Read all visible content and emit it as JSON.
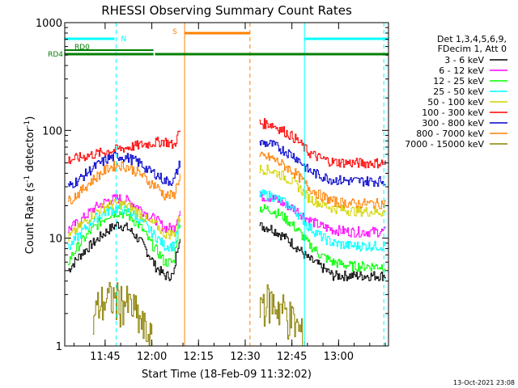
{
  "chart_data": {
    "type": "line",
    "title": "RHESSI Observing Summary Count Rates",
    "xlabel": "Start Time (18-Feb-09 11:32:02)",
    "ylabel": "Count Rate (s",
    "ylabel_sup1": "-1",
    "ylabel_mid": " detector",
    "ylabel_sup2": "-1",
    "ylabel_end": ")",
    "y_scale": "log",
    "ylim": [
      1,
      1000
    ],
    "xlim_minutes": [
      0,
      104
    ],
    "x_ticks": [
      {
        "label": "11:45",
        "min": 12.97
      },
      {
        "label": "12:00",
        "min": 27.97
      },
      {
        "label": "12:15",
        "min": 42.97
      },
      {
        "label": "12:30",
        "min": 57.97
      },
      {
        "label": "12:45",
        "min": 72.97
      },
      {
        "label": "13:00",
        "min": 87.97
      }
    ],
    "y_ticks": [
      {
        "label": "1",
        "v": 1
      },
      {
        "label": "10",
        "v": 10
      },
      {
        "label": "100",
        "v": 100
      },
      {
        "label": "1000",
        "v": 1000
      }
    ],
    "timestamp": "13-Oct-2021 23:08",
    "legend": {
      "header1": "Det 1,3,4,5,6,9,",
      "header2": "FDecim 1, Att 0",
      "items": [
        {
          "label": "3 - 6 keV",
          "color": "#000000"
        },
        {
          "label": "6 - 12 keV",
          "color": "#ff00ff"
        },
        {
          "label": "12 - 25 keV",
          "color": "#00ff00"
        },
        {
          "label": "25 - 50 keV",
          "color": "#00ffff"
        },
        {
          "label": "50 - 100 keV",
          "color": "#d4d400"
        },
        {
          "label": "100 - 300 keV",
          "color": "#ff0000"
        },
        {
          "label": "300 - 800 keV",
          "color": "#0000cc"
        },
        {
          "label": "800 - 7000 keV",
          "color": "#ff8000"
        },
        {
          "label": "7000 - 15000 keV",
          "color": "#8b8000"
        }
      ]
    },
    "flags": [
      {
        "label": "N",
        "color": "#00ffff",
        "segments": [
          [
            0,
            16
          ],
          [
            77,
            104
          ]
        ]
      },
      {
        "label": "RD0",
        "color": "#008000",
        "segments": [
          [
            0,
            28.5
          ]
        ]
      },
      {
        "label": "RD4",
        "color": "#008000",
        "segments": [
          [
            0,
            28.5
          ],
          [
            29,
            104
          ]
        ]
      },
      {
        "label": "S",
        "color": "#ff8000",
        "segments": [
          [
            38.5,
            59.5
          ]
        ]
      }
    ],
    "vlines": [
      {
        "min": 0,
        "color": "#00ffff",
        "dash": false
      },
      {
        "min": 16.5,
        "color": "#00ffff",
        "dash": true
      },
      {
        "min": 38.5,
        "color": "#ff8000",
        "dash": false
      },
      {
        "min": 59.5,
        "color": "#ff8000",
        "dash": true
      },
      {
        "min": 77.0,
        "color": "#00ffff",
        "dash": false
      },
      {
        "min": 102.5,
        "color": "#00ffff",
        "dash": true
      }
    ],
    "series": [
      {
        "name": "3 - 6 keV",
        "color": "#000000",
        "seg1": [
          [
            1,
            5
          ],
          [
            5,
            7
          ],
          [
            10,
            9.5
          ],
          [
            14,
            12
          ],
          [
            17,
            13.5
          ],
          [
            20,
            12.5
          ],
          [
            24,
            9.5
          ],
          [
            27,
            7
          ],
          [
            29,
            5.5
          ],
          [
            32,
            4.5
          ],
          [
            35,
            4.5
          ],
          [
            37,
            11
          ]
        ],
        "seg2": [
          [
            62.5,
            13
          ],
          [
            66,
            12.5
          ],
          [
            70,
            10.5
          ],
          [
            74,
            8.5
          ],
          [
            78,
            6.5
          ],
          [
            82,
            5.5
          ],
          [
            86,
            4.5
          ],
          [
            92,
            4.5
          ],
          [
            103,
            4.5
          ]
        ]
      },
      {
        "name": "6 - 12 keV",
        "color": "#ff00ff",
        "seg1": [
          [
            1,
            12
          ],
          [
            5,
            14.5
          ],
          [
            10,
            19.5
          ],
          [
            14,
            22.5
          ],
          [
            17,
            23.5
          ],
          [
            20,
            22.5
          ],
          [
            24,
            19
          ],
          [
            27,
            16
          ],
          [
            29,
            15
          ],
          [
            32,
            12.5
          ],
          [
            35,
            12.5
          ],
          [
            37,
            18
          ]
        ],
        "seg2": [
          [
            62.5,
            24.5
          ],
          [
            66,
            24
          ],
          [
            70,
            21
          ],
          [
            74,
            18.5
          ],
          [
            78,
            15
          ],
          [
            82,
            13
          ],
          [
            86,
            12
          ],
          [
            92,
            11.5
          ],
          [
            103,
            11.5
          ]
        ]
      },
      {
        "name": "12 - 25 keV",
        "color": "#00ff00",
        "seg1": [
          [
            1,
            6
          ],
          [
            5,
            9
          ],
          [
            10,
            13
          ],
          [
            14,
            16.5
          ],
          [
            17,
            17.5
          ],
          [
            20,
            16.5
          ],
          [
            24,
            13
          ],
          [
            27,
            9.5
          ],
          [
            29,
            8
          ],
          [
            32,
            6
          ],
          [
            35,
            6
          ],
          [
            37,
            14
          ]
        ],
        "seg2": [
          [
            62.5,
            19
          ],
          [
            66,
            18.5
          ],
          [
            70,
            16
          ],
          [
            74,
            12.5
          ],
          [
            78,
            9
          ],
          [
            82,
            7
          ],
          [
            86,
            6
          ],
          [
            92,
            5.5
          ],
          [
            103,
            5.5
          ]
        ]
      },
      {
        "name": "25 - 50 keV",
        "color": "#00ffff",
        "seg1": [
          [
            1,
            8
          ],
          [
            5,
            11
          ],
          [
            10,
            15.5
          ],
          [
            14,
            18
          ],
          [
            17,
            19
          ],
          [
            20,
            18
          ],
          [
            24,
            15
          ],
          [
            27,
            12
          ],
          [
            29,
            10.5
          ],
          [
            32,
            8.5
          ],
          [
            35,
            8.5
          ],
          [
            37,
            14
          ]
        ],
        "seg2": [
          [
            62.5,
            25.5
          ],
          [
            66,
            25
          ],
          [
            70,
            22
          ],
          [
            74,
            18
          ],
          [
            78,
            13
          ],
          [
            82,
            10.5
          ],
          [
            86,
            9
          ],
          [
            92,
            8.5
          ],
          [
            103,
            8.5
          ]
        ]
      },
      {
        "name": "50 - 100 keV",
        "color": "#d4d400",
        "seg1": [
          [
            1,
            10
          ],
          [
            5,
            13
          ],
          [
            10,
            17.5
          ],
          [
            14,
            20.5
          ],
          [
            17,
            21
          ],
          [
            20,
            20
          ],
          [
            24,
            17
          ],
          [
            27,
            14
          ],
          [
            29,
            13.5
          ],
          [
            32,
            11
          ],
          [
            35,
            11
          ],
          [
            37,
            16
          ]
        ],
        "seg2": [
          [
            62.5,
            44
          ],
          [
            66,
            43
          ],
          [
            70,
            38
          ],
          [
            74,
            32
          ],
          [
            78,
            24
          ],
          [
            82,
            21
          ],
          [
            86,
            19
          ],
          [
            92,
            18
          ],
          [
            103,
            17.5
          ]
        ]
      },
      {
        "name": "100 - 300 keV",
        "color": "#ff0000",
        "seg1": [
          [
            1,
            53
          ],
          [
            32,
            80
          ],
          [
            35,
            72
          ],
          [
            37,
            100
          ]
        ],
        "seg2": [
          [
            62.5,
            117
          ],
          [
            66,
            115
          ],
          [
            70,
            100
          ],
          [
            74,
            84
          ],
          [
            78,
            63
          ],
          [
            82,
            55
          ],
          [
            86,
            51
          ],
          [
            92,
            50
          ],
          [
            103,
            50
          ]
        ]
      },
      {
        "name": "300 - 800 keV",
        "color": "#0000cc",
        "seg1": [
          [
            1,
            30
          ],
          [
            5,
            36
          ],
          [
            10,
            47
          ],
          [
            14,
            55
          ],
          [
            17,
            58
          ],
          [
            20,
            56
          ],
          [
            24,
            50
          ],
          [
            27,
            42
          ],
          [
            29,
            40
          ],
          [
            32,
            34
          ],
          [
            35,
            34
          ],
          [
            37,
            50
          ]
        ],
        "seg2": [
          [
            62.5,
            77
          ],
          [
            66,
            75
          ],
          [
            70,
            66
          ],
          [
            74,
            57
          ],
          [
            78,
            43
          ],
          [
            82,
            38
          ],
          [
            86,
            35
          ],
          [
            92,
            34
          ],
          [
            103,
            34
          ]
        ]
      },
      {
        "name": "800 - 7000 keV",
        "color": "#ff8000",
        "seg1": [
          [
            1,
            22
          ],
          [
            5,
            27
          ],
          [
            10,
            37
          ],
          [
            14,
            45
          ],
          [
            17,
            48
          ],
          [
            20,
            46
          ],
          [
            24,
            40
          ],
          [
            27,
            33
          ],
          [
            29,
            31
          ],
          [
            32,
            25
          ],
          [
            35,
            25
          ],
          [
            37,
            38
          ]
        ],
        "seg2": [
          [
            62.5,
            57
          ],
          [
            66,
            56
          ],
          [
            70,
            48
          ],
          [
            74,
            40
          ],
          [
            78,
            30
          ],
          [
            82,
            25
          ],
          [
            86,
            22
          ],
          [
            92,
            21
          ],
          [
            103,
            21
          ]
        ]
      },
      {
        "name": "7000 - 15000 keV",
        "color": "#8b8000",
        "seg1": [
          [
            9,
            1.7
          ],
          [
            11,
            2.5
          ],
          [
            15,
            2.8
          ],
          [
            19,
            2.6
          ],
          [
            22,
            2.2
          ],
          [
            25,
            1.5
          ],
          [
            28,
            1.1
          ]
        ],
        "seg2": [
          [
            62.5,
            2.7
          ],
          [
            66,
            2.6
          ],
          [
            70,
            2.2
          ],
          [
            74,
            1.6
          ],
          [
            77,
            1.1
          ]
        ]
      }
    ]
  }
}
